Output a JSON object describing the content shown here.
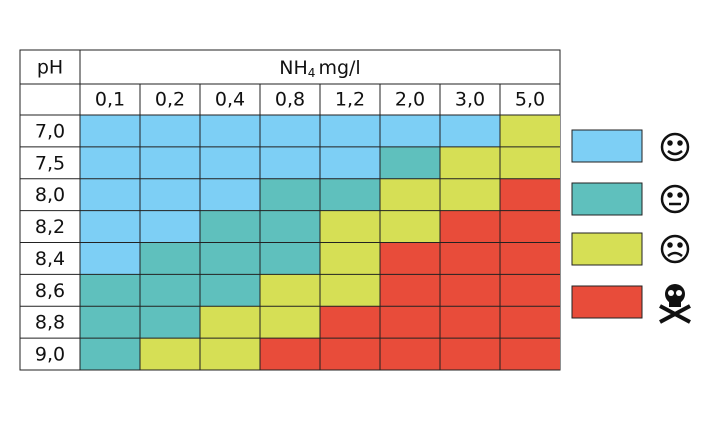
{
  "header": {
    "ph_label": "pH",
    "nh_base": "NH",
    "nh_sub": "4",
    "nh_unit": "mg/l"
  },
  "columns": [
    "0,1",
    "0,2",
    "0,4",
    "0,8",
    "1,2",
    "2,0",
    "3,0",
    "5,0"
  ],
  "rows": [
    "7,0",
    "7,5",
    "8,0",
    "8,2",
    "8,4",
    "8,6",
    "8,8",
    "9,0"
  ],
  "levels": [
    "#7dcff5",
    "#5fc0bd",
    "#d6df55",
    "#e84c3a"
  ],
  "cells": [
    [
      0,
      0,
      0,
      0,
      0,
      0,
      0,
      2
    ],
    [
      0,
      0,
      0,
      0,
      0,
      1,
      2,
      2
    ],
    [
      0,
      0,
      0,
      1,
      1,
      2,
      2,
      3
    ],
    [
      0,
      0,
      1,
      1,
      2,
      2,
      3,
      3
    ],
    [
      0,
      1,
      1,
      1,
      2,
      3,
      3,
      3
    ],
    [
      1,
      1,
      1,
      2,
      2,
      3,
      3,
      3
    ],
    [
      1,
      1,
      2,
      2,
      3,
      3,
      3,
      3
    ],
    [
      1,
      2,
      2,
      3,
      3,
      3,
      3,
      3
    ]
  ]
}
